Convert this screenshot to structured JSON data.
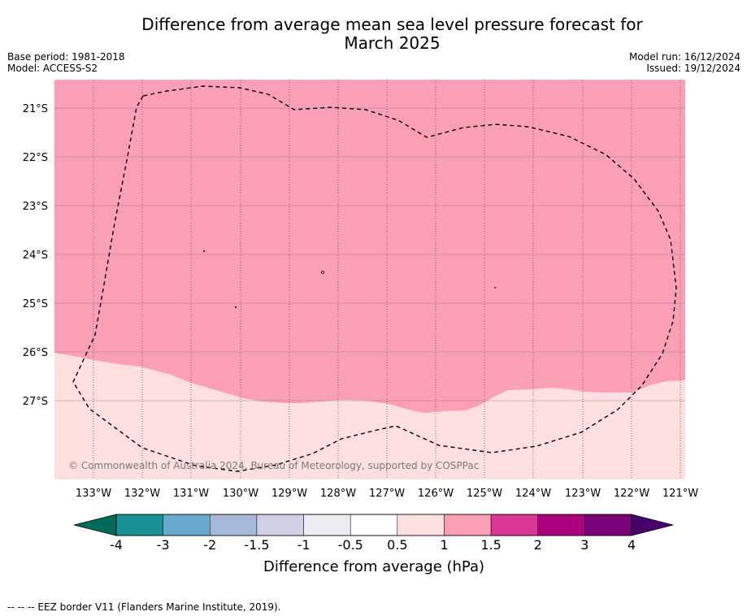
{
  "title_line1": "Difference from average mean sea level pressure forecast for",
  "title_line2": "March 2025",
  "base_period": "Base period: 1981-2018",
  "model": "Model: ACCESS-S2",
  "model_run": "Model run: 16/12/2024",
  "issued": "Issued: 19/12/2024",
  "copyright": "© Commonwealth of Australia 2024, Bureau of Meteorology, supported by COSPPac",
  "footnote": "--  --  -- EEZ border V11 (Flanders Marine Institute, 2019).",
  "colorbar_label": "Difference from average (hPa)",
  "lat_labels": [
    "21°S",
    "22°S",
    "23°S",
    "24°S",
    "25°S",
    "26°S",
    "27°S"
  ],
  "lon_labels": [
    "133°W",
    "132°W",
    "131°W",
    "130°W",
    "129°W",
    "128°W",
    "127°W",
    "126°W",
    "125°W",
    "124°W",
    "123°W",
    "122°W",
    "121°W"
  ],
  "colorbar": {
    "ticks": [
      "-4",
      "-3",
      "-2",
      "-1.5",
      "-1",
      "-0.5",
      "0.5",
      "1",
      "1.5",
      "2",
      "3",
      "4"
    ],
    "colors": [
      "#1a8f96",
      "#67a9cf",
      "#a6b8d9",
      "#d0d1e6",
      "#eeeaf1",
      "#ffffff",
      "#fde0dd",
      "#fa9fb5",
      "#dd3497",
      "#ae017e",
      "#7a0177"
    ],
    "under_color": "#016c59",
    "over_color": "#49006a"
  },
  "map_colors": {
    "band_0_5_to_1": "#fde0dd",
    "band_1_to_1_5": "#fa9fb5"
  }
}
